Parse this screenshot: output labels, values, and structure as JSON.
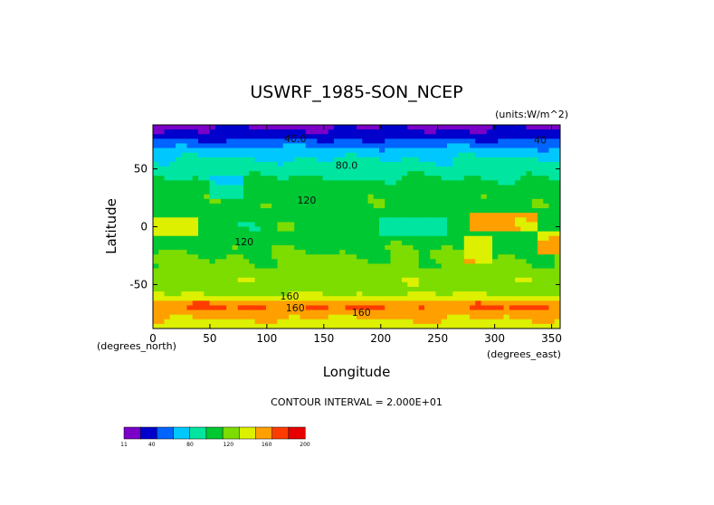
{
  "chart_data": {
    "type": "heatmap",
    "title": "USWRF_1985-SON_NCEP",
    "units_note": "(units:W/m^2)",
    "xlabel": "Longitude",
    "ylabel": "Latitude",
    "x_unit_label": "(degrees_east)",
    "y_unit_label": "(degrees_north)",
    "xlim": [
      0,
      357.5
    ],
    "ylim": [
      -88,
      88
    ],
    "x_ticks": [
      0,
      50,
      100,
      150,
      200,
      250,
      300,
      350
    ],
    "y_ticks": [
      -50,
      0,
      50
    ],
    "x_tick_labels": [
      "0",
      "50",
      "100",
      "150",
      "200",
      "250",
      "300",
      "350"
    ],
    "y_tick_labels": [
      "-50",
      "0",
      "50"
    ],
    "contour_interval_text": "CONTOUR INTERVAL = 2.000E+01",
    "contour_labels": [
      {
        "text": "40.0",
        "lon": 125,
        "lat": 73
      },
      {
        "text": "80.0",
        "lon": 170,
        "lat": 50
      },
      {
        "text": "120",
        "lon": 80,
        "lat": -16
      },
      {
        "text": "120",
        "lon": 135,
        "lat": 20
      },
      {
        "text": "160",
        "lon": 120,
        "lat": -63
      },
      {
        "text": "160",
        "lon": 125,
        "lat": -73
      },
      {
        "text": "160",
        "lon": 183,
        "lat": -77
      },
      {
        "text": "40",
        "lon": 340,
        "lat": 72
      }
    ],
    "levels": [
      11,
      20,
      40,
      60,
      80,
      100,
      120,
      140,
      160,
      180,
      200
    ],
    "colorbar_labels": [
      "11",
      "40",
      "80",
      "120",
      "160",
      "200"
    ],
    "colors": [
      "#7a00c8",
      "#0000cc",
      "#0064ff",
      "#00c8ff",
      "#00e6a0",
      "#00c832",
      "#7ddc00",
      "#dcf000",
      "#ffa000",
      "#ff3c00",
      "#e60000"
    ],
    "zonal_profile": [
      {
        "lat": 88,
        "value": 15
      },
      {
        "lat": 78,
        "value": 30
      },
      {
        "lat": 72,
        "value": 50
      },
      {
        "lat": 65,
        "value": 70
      },
      {
        "lat": 55,
        "value": 85
      },
      {
        "lat": 45,
        "value": 95
      },
      {
        "lat": 35,
        "value": 110
      },
      {
        "lat": 20,
        "value": 115
      },
      {
        "lat": 10,
        "value": 110
      },
      {
        "lat": 0,
        "value": 105
      },
      {
        "lat": -10,
        "value": 110
      },
      {
        "lat": -20,
        "value": 118
      },
      {
        "lat": -35,
        "value": 125
      },
      {
        "lat": -45,
        "value": 135
      },
      {
        "lat": -55,
        "value": 130
      },
      {
        "lat": -62,
        "value": 150
      },
      {
        "lat": -68,
        "value": 185
      },
      {
        "lat": -74,
        "value": 170
      },
      {
        "lat": -80,
        "value": 160
      },
      {
        "lat": -88,
        "value": 145
      }
    ],
    "regional_features": [
      {
        "lon": [
          280,
          340
        ],
        "lat": [
          -5,
          12
        ],
        "value": 185
      },
      {
        "lon": [
          0,
          40
        ],
        "lat": [
          -8,
          8
        ],
        "value": 165
      },
      {
        "lon": [
          275,
          300
        ],
        "lat": [
          -30,
          -10
        ],
        "value": 175
      },
      {
        "lon": [
          340,
          357.5
        ],
        "lat": [
          -22,
          -5
        ],
        "value": 180
      },
      {
        "lon": [
          50,
          80
        ],
        "lat": [
          25,
          45
        ],
        "value": 70
      },
      {
        "lon": [
          110,
          125
        ],
        "lat": [
          -5,
          5
        ],
        "value": 150
      },
      {
        "lon": [
          200,
          260
        ],
        "lat": [
          -8,
          8
        ],
        "value": 90
      }
    ]
  }
}
